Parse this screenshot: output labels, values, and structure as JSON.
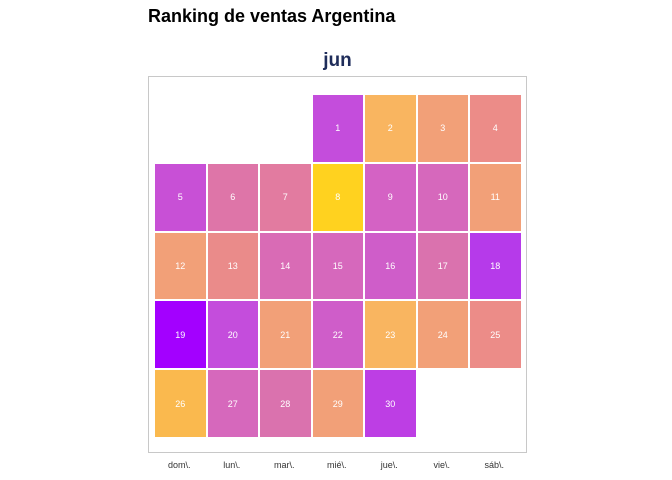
{
  "title": "Ranking de ventas Argentina",
  "chart_data": {
    "type": "heatmap",
    "panel_title": "jun",
    "x_labels": [
      "dom\\.",
      "lun\\.",
      "mar\\.",
      "mié\\.",
      "jue\\.",
      "vie\\.",
      "sáb\\."
    ],
    "grid": {
      "rows": 5,
      "cols": 7
    },
    "days": [
      {
        "day": 1,
        "week": 0,
        "weekday": 3,
        "color": "#C44DDC"
      },
      {
        "day": 2,
        "week": 0,
        "weekday": 4,
        "color": "#F9B560"
      },
      {
        "day": 3,
        "week": 0,
        "weekday": 5,
        "color": "#F2A078"
      },
      {
        "day": 4,
        "week": 0,
        "weekday": 6,
        "color": "#EC8C88"
      },
      {
        "day": 5,
        "week": 1,
        "weekday": 0,
        "color": "#C850D6"
      },
      {
        "day": 6,
        "week": 1,
        "weekday": 1,
        "color": "#DE75A8"
      },
      {
        "day": 7,
        "week": 1,
        "weekday": 2,
        "color": "#E27BA0"
      },
      {
        "day": 8,
        "week": 1,
        "weekday": 3,
        "color": "#FFD21F"
      },
      {
        "day": 9,
        "week": 1,
        "weekday": 4,
        "color": "#D462C4"
      },
      {
        "day": 10,
        "week": 1,
        "weekday": 5,
        "color": "#D668BC"
      },
      {
        "day": 11,
        "week": 1,
        "weekday": 6,
        "color": "#F2A078"
      },
      {
        "day": 12,
        "week": 2,
        "weekday": 0,
        "color": "#F2A078"
      },
      {
        "day": 13,
        "week": 2,
        "weekday": 1,
        "color": "#EA8B8A"
      },
      {
        "day": 14,
        "week": 2,
        "weekday": 2,
        "color": "#D96BB5"
      },
      {
        "day": 15,
        "week": 2,
        "weekday": 3,
        "color": "#D668BC"
      },
      {
        "day": 16,
        "week": 2,
        "weekday": 4,
        "color": "#CF5DC9"
      },
      {
        "day": 17,
        "week": 2,
        "weekday": 5,
        "color": "#DA72AE"
      },
      {
        "day": 18,
        "week": 2,
        "weekday": 6,
        "color": "#B63AEA"
      },
      {
        "day": 19,
        "week": 3,
        "weekday": 0,
        "color": "#A300FF"
      },
      {
        "day": 20,
        "week": 3,
        "weekday": 1,
        "color": "#C44DDC"
      },
      {
        "day": 21,
        "week": 3,
        "weekday": 2,
        "color": "#F2A078"
      },
      {
        "day": 22,
        "week": 3,
        "weekday": 3,
        "color": "#CF5DC9"
      },
      {
        "day": 23,
        "week": 3,
        "weekday": 4,
        "color": "#F9B560"
      },
      {
        "day": 24,
        "week": 3,
        "weekday": 5,
        "color": "#F2A078"
      },
      {
        "day": 25,
        "week": 3,
        "weekday": 6,
        "color": "#EC8C88"
      },
      {
        "day": 26,
        "week": 4,
        "weekday": 0,
        "color": "#FAB94E"
      },
      {
        "day": 27,
        "week": 4,
        "weekday": 1,
        "color": "#D668BC"
      },
      {
        "day": 28,
        "week": 4,
        "weekday": 2,
        "color": "#DA72AE"
      },
      {
        "day": 29,
        "week": 4,
        "weekday": 3,
        "color": "#F2A078"
      },
      {
        "day": 30,
        "week": 4,
        "weekday": 4,
        "color": "#BD3EE4"
      }
    ]
  }
}
